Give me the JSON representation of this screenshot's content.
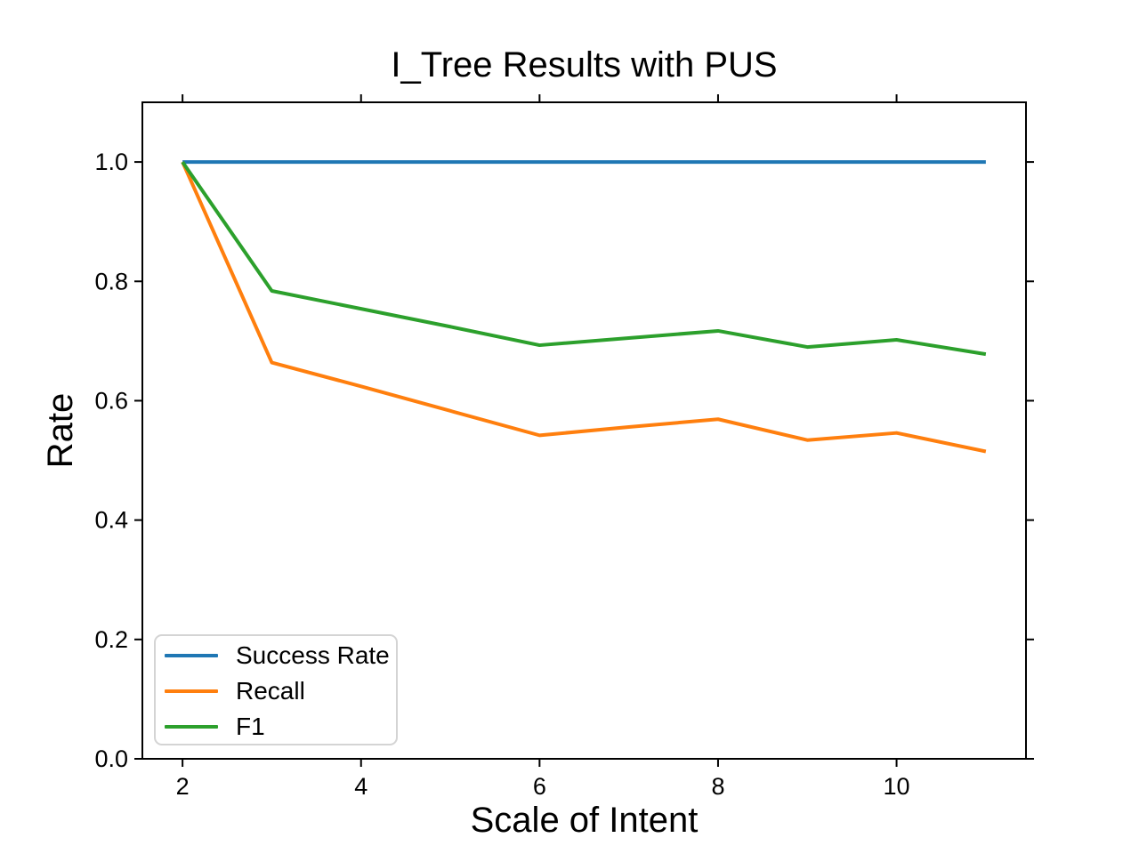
{
  "figure": {
    "title": "I_Tree Results with PUS",
    "xlabel": "Scale of Intent",
    "ylabel": "Rate"
  },
  "chart_data": {
    "type": "line",
    "title": "I_Tree Results with PUS",
    "xlabel": "Scale of Intent",
    "ylabel": "Rate",
    "x": [
      2,
      3,
      4,
      5,
      6,
      7,
      8,
      9,
      10,
      11
    ],
    "series": [
      {
        "name": "Success Rate",
        "color": "#1f77b4",
        "values": [
          1.0,
          1.0,
          1.0,
          1.0,
          1.0,
          1.0,
          1.0,
          1.0,
          1.0,
          1.0
        ]
      },
      {
        "name": "Recall",
        "color": "#ff7f0e",
        "values": [
          1.0,
          0.664,
          0.624,
          0.583,
          0.542,
          0.556,
          0.569,
          0.534,
          0.546,
          0.515
        ]
      },
      {
        "name": "F1",
        "color": "#2ca02c",
        "values": [
          1.0,
          0.784,
          0.754,
          0.724,
          0.693,
          0.705,
          0.717,
          0.69,
          0.702,
          0.678
        ]
      }
    ],
    "xlim": [
      1.55,
      11.45
    ],
    "ylim": [
      0,
      1.1
    ],
    "xticks": [
      2,
      4,
      6,
      8,
      10
    ],
    "xtick_labels": [
      "2",
      "4",
      "6",
      "8",
      "10"
    ],
    "yticks": [
      0,
      0.2,
      0.4,
      0.6,
      0.8,
      1.0
    ],
    "ytick_labels": [
      "0.0",
      "0.2",
      "0.4",
      "0.6",
      "0.8",
      "1.0"
    ],
    "legend": {
      "position": "lower left",
      "entries": [
        "Success Rate",
        "Recall",
        "F1"
      ]
    },
    "grid": false,
    "ticks": "all-four-spines-outward",
    "axis_color": "#000000",
    "background": "#ffffff"
  }
}
